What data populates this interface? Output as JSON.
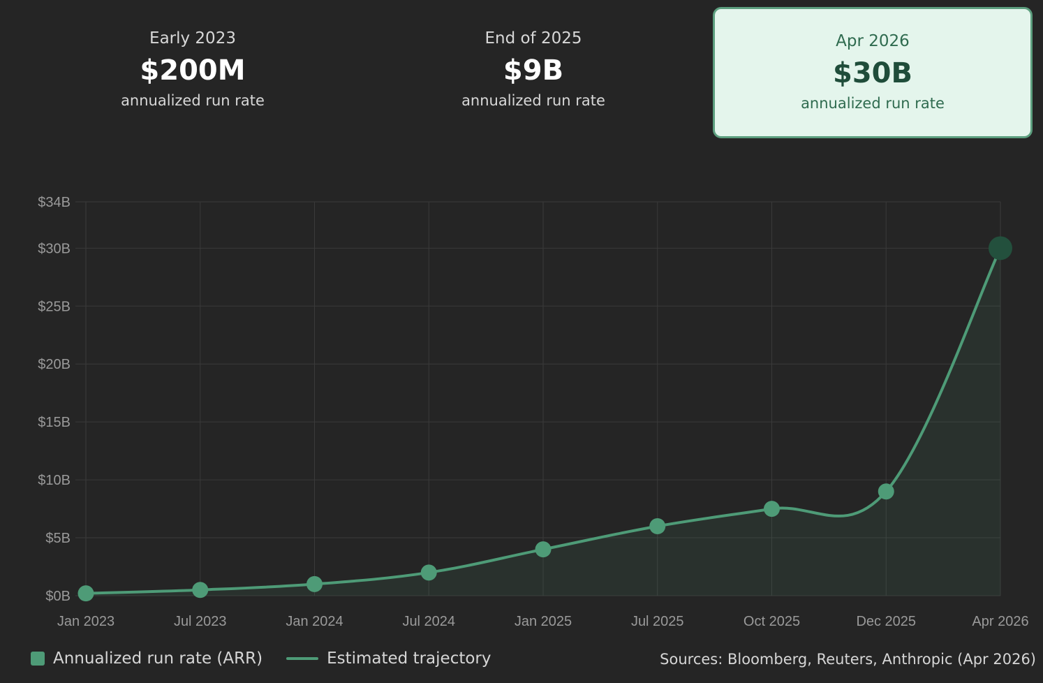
{
  "stats": [
    {
      "period": "Early 2023",
      "value": "$200M",
      "caption": "annualized run rate"
    },
    {
      "period": "End of 2025",
      "value": "$9B",
      "caption": "annualized run rate"
    },
    {
      "period": "Apr 2026",
      "value": "$30B",
      "caption": "annualized run rate"
    }
  ],
  "legend": {
    "arr_label": "Annualized run rate (ARR)",
    "trajectory_label": "Estimated trajectory",
    "sources": "Sources: Bloomberg, Reuters, Anthropic (Apr 2026)"
  },
  "colors": {
    "accent": "#4e9b77",
    "highlight_point": "#23503d",
    "card_background": "#e4f5ec",
    "grid": "#3a3a3a"
  },
  "chart_data": {
    "type": "line",
    "categories": [
      "Jan 2023",
      "Jul 2023",
      "Jan 2024",
      "Jul 2024",
      "Jan 2025",
      "Jul 2025",
      "Oct 2025",
      "Dec 2025",
      "Apr 2026"
    ],
    "series": [
      {
        "name": "Annualized run rate (ARR)",
        "values": [
          0.2,
          0.5,
          1,
          2,
          4,
          6,
          7.5,
          9,
          30
        ]
      }
    ],
    "yticks": [
      "$0B",
      "$5B",
      "$10B",
      "$15B",
      "$20B",
      "$25B",
      "$30B",
      "$34B"
    ],
    "ytick_values": [
      0,
      5,
      10,
      15,
      20,
      25,
      30,
      34
    ],
    "ylim": [
      0,
      34
    ],
    "grid": true,
    "area_fill": true,
    "highlight_last_point": true,
    "legend_position": "bottom-left"
  }
}
